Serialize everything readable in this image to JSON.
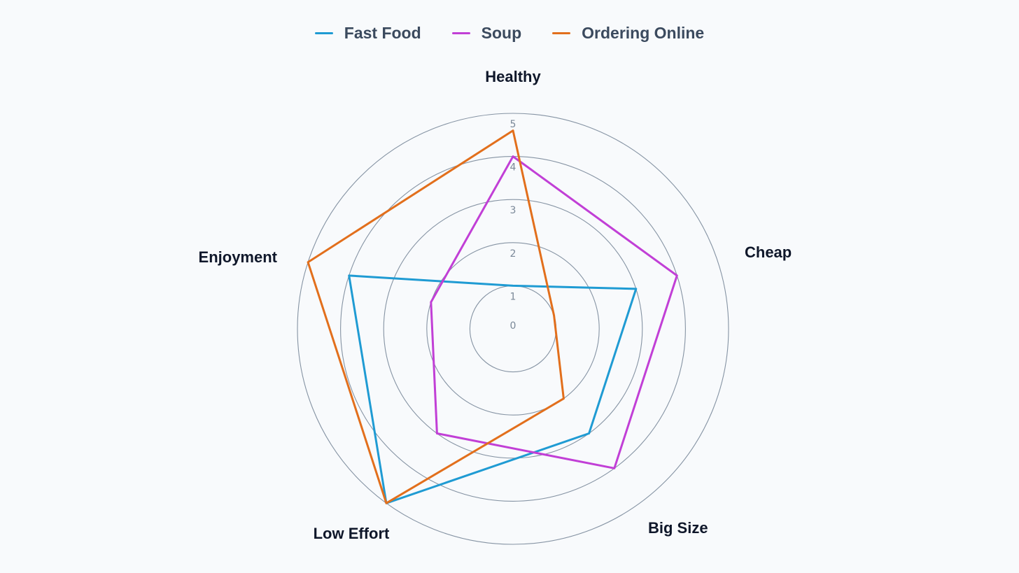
{
  "chart_data": {
    "type": "radar",
    "title": "",
    "axes": [
      "Healthy",
      "Cheap",
      "Big Size",
      "Low Effort",
      "Enjoyment"
    ],
    "ticks": [
      "0",
      "1",
      "2",
      "3",
      "4",
      "5"
    ],
    "range": [
      0,
      5
    ],
    "grid": true,
    "legend_position": "top-center",
    "series": [
      {
        "name": "Fast Food",
        "values": [
          1,
          3,
          3,
          5,
          4
        ],
        "color": "#1f9bd3"
      },
      {
        "name": "Soup",
        "values": [
          4,
          4,
          4,
          3,
          2
        ],
        "color": "#c13fd6"
      },
      {
        "name": "Ordering Online",
        "values": [
          4.6,
          1,
          2,
          5,
          5
        ],
        "color": "#e26f1c"
      }
    ]
  }
}
